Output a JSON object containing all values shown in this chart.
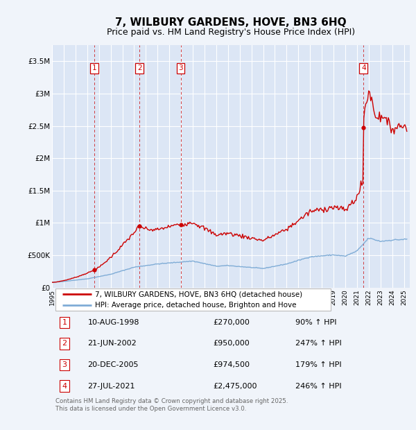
{
  "title": "7, WILBURY GARDENS, HOVE, BN3 6HQ",
  "subtitle": "Price paid vs. HM Land Registry's House Price Index (HPI)",
  "title_fontsize": 11,
  "subtitle_fontsize": 9,
  "background_color": "#f0f4fa",
  "plot_bg_color": "#dce6f5",
  "grid_color": "#ffffff",
  "ylim": [
    0,
    3750000
  ],
  "xlim_start": 1995.0,
  "xlim_end": 2025.5,
  "yticks": [
    0,
    500000,
    1000000,
    1500000,
    2000000,
    2500000,
    3000000,
    3500000
  ],
  "ytick_labels": [
    "£0",
    "£500K",
    "£1M",
    "£1.5M",
    "£2M",
    "£2.5M",
    "£3M",
    "£3.5M"
  ],
  "xtick_years": [
    1995,
    1996,
    1997,
    1998,
    1999,
    2000,
    2001,
    2002,
    2003,
    2004,
    2005,
    2006,
    2007,
    2008,
    2009,
    2010,
    2011,
    2012,
    2013,
    2014,
    2015,
    2016,
    2017,
    2018,
    2019,
    2020,
    2021,
    2022,
    2023,
    2024,
    2025
  ],
  "red_line_color": "#cc0000",
  "blue_line_color": "#7facd6",
  "sale_points": [
    {
      "num": 1,
      "year": 1998.614,
      "price": 270000,
      "date": "10-AUG-1998",
      "pct": "90%"
    },
    {
      "num": 2,
      "year": 2002.464,
      "price": 950000,
      "date": "21-JUN-2002",
      "pct": "247%"
    },
    {
      "num": 3,
      "year": 2005.969,
      "price": 974500,
      "date": "20-DEC-2005",
      "pct": "179%"
    },
    {
      "num": 4,
      "year": 2021.557,
      "price": 2475000,
      "date": "27-JUL-2021",
      "pct": "246%"
    }
  ],
  "legend_red_label": "7, WILBURY GARDENS, HOVE, BN3 6HQ (detached house)",
  "legend_blue_label": "HPI: Average price, detached house, Brighton and Hove",
  "footer": "Contains HM Land Registry data © Crown copyright and database right 2025.\nThis data is licensed under the Open Government Licence v3.0."
}
